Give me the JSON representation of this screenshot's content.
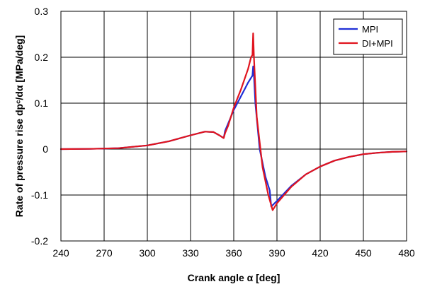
{
  "chart_data": {
    "type": "line",
    "xlabel": "Crank angle α [deg]",
    "ylabel": "Rate of pressure rise dpᶜ/dα [MPa/deg]",
    "xlim": [
      240,
      480
    ],
    "ylim": [
      -0.2,
      0.3
    ],
    "xticks": [
      240,
      270,
      300,
      330,
      360,
      390,
      420,
      450,
      480
    ],
    "yticks": [
      -0.2,
      -0.1,
      0,
      0.1,
      0.2,
      0.3
    ],
    "xtick_labels": [
      "240",
      "270",
      "300",
      "330",
      "360",
      "390",
      "420",
      "450",
      "480"
    ],
    "ytick_labels": [
      "-0.2",
      "-0.1",
      "0",
      "0.1",
      "0.2",
      "0.3"
    ],
    "grid": true,
    "legend": "top-right",
    "series": [
      {
        "name": "MPI",
        "color": "#1f2fd6",
        "x": [
          240,
          260,
          280,
          300,
          315,
          330,
          340,
          346,
          350,
          353,
          354,
          356,
          360,
          365,
          370,
          373,
          373.5,
          374,
          375,
          378,
          382,
          385,
          386,
          390,
          400,
          410,
          420,
          430,
          440,
          450,
          460,
          470,
          480
        ],
        "y": [
          0.0,
          0.0005,
          0.002,
          0.008,
          0.017,
          0.03,
          0.038,
          0.037,
          0.03,
          0.024,
          0.04,
          0.055,
          0.085,
          0.115,
          0.145,
          0.16,
          0.18,
          0.16,
          0.1,
          0.0,
          -0.06,
          -0.09,
          -0.125,
          -0.113,
          -0.08,
          -0.055,
          -0.038,
          -0.025,
          -0.017,
          -0.011,
          -0.008,
          -0.006,
          -0.005
        ]
      },
      {
        "name": "DI+MPI",
        "color": "#e0141e",
        "x": [
          240,
          260,
          280,
          300,
          315,
          330,
          340,
          346,
          350,
          353,
          354,
          356,
          360,
          365,
          370,
          372,
          373,
          373.5,
          374,
          376,
          380,
          384,
          387,
          390,
          400,
          410,
          420,
          430,
          440,
          450,
          460,
          470,
          480
        ],
        "y": [
          0.0,
          0.0005,
          0.002,
          0.008,
          0.017,
          0.03,
          0.038,
          0.037,
          0.03,
          0.024,
          0.035,
          0.05,
          0.09,
          0.13,
          0.175,
          0.2,
          0.205,
          0.252,
          0.2,
          0.07,
          -0.04,
          -0.1,
          -0.133,
          -0.118,
          -0.082,
          -0.055,
          -0.038,
          -0.025,
          -0.017,
          -0.011,
          -0.008,
          -0.006,
          -0.005
        ]
      }
    ]
  }
}
